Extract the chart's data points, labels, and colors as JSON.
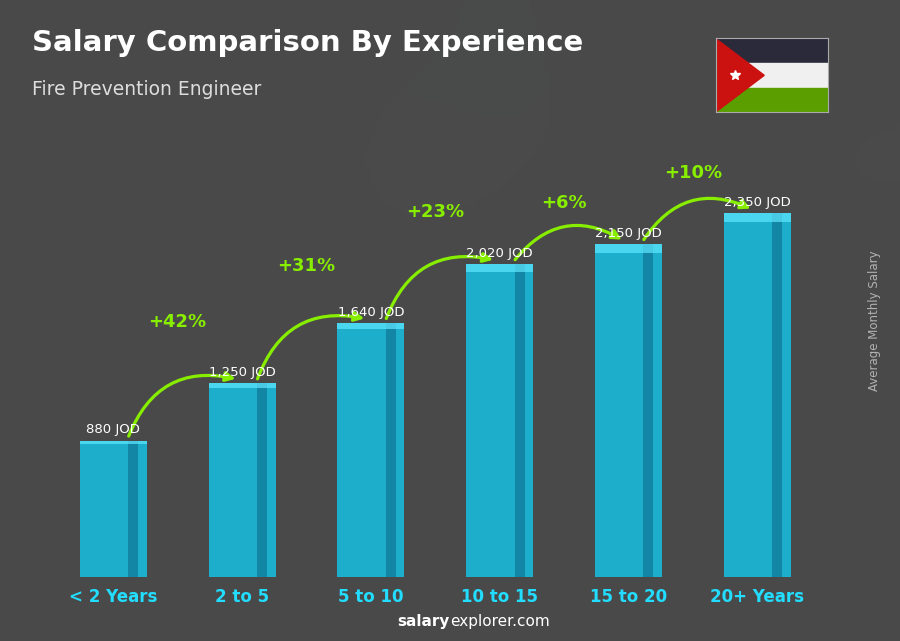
{
  "title": "Salary Comparison By Experience",
  "subtitle": "Fire Prevention Engineer",
  "categories": [
    "< 2 Years",
    "2 to 5",
    "5 to 10",
    "10 to 15",
    "15 to 20",
    "20+ Years"
  ],
  "values": [
    880,
    1250,
    1640,
    2020,
    2150,
    2350
  ],
  "value_labels": [
    "880 JOD",
    "1,250 JOD",
    "1,640 JOD",
    "2,020 JOD",
    "2,150 JOD",
    "2,350 JOD"
  ],
  "pct_changes": [
    "+42%",
    "+31%",
    "+23%",
    "+6%",
    "+10%"
  ],
  "bar_color": "#1ab8d8",
  "bar_edge_color": "#0e8faa",
  "background_color": "#555555",
  "title_color": "#ffffff",
  "subtitle_color": "#dddddd",
  "value_label_color": "#ffffff",
  "pct_color": "#88ee00",
  "xlabel_color": "#22ddff",
  "ylabel_text": "Average Monthly Salary",
  "ylabel_color": "#cccccc",
  "footer_bold": "salary",
  "footer_normal": "explorer.com",
  "footer_color": "#ffffff",
  "ylim": [
    0,
    2900
  ],
  "figsize": [
    9.0,
    6.41
  ],
  "dpi": 100,
  "arc_heights": [
    340,
    310,
    280,
    210,
    200
  ],
  "flag_black": "#2a2a3a",
  "flag_white": "#f0f0f0",
  "flag_green": "#5a9e00",
  "flag_red": "#cc1111"
}
